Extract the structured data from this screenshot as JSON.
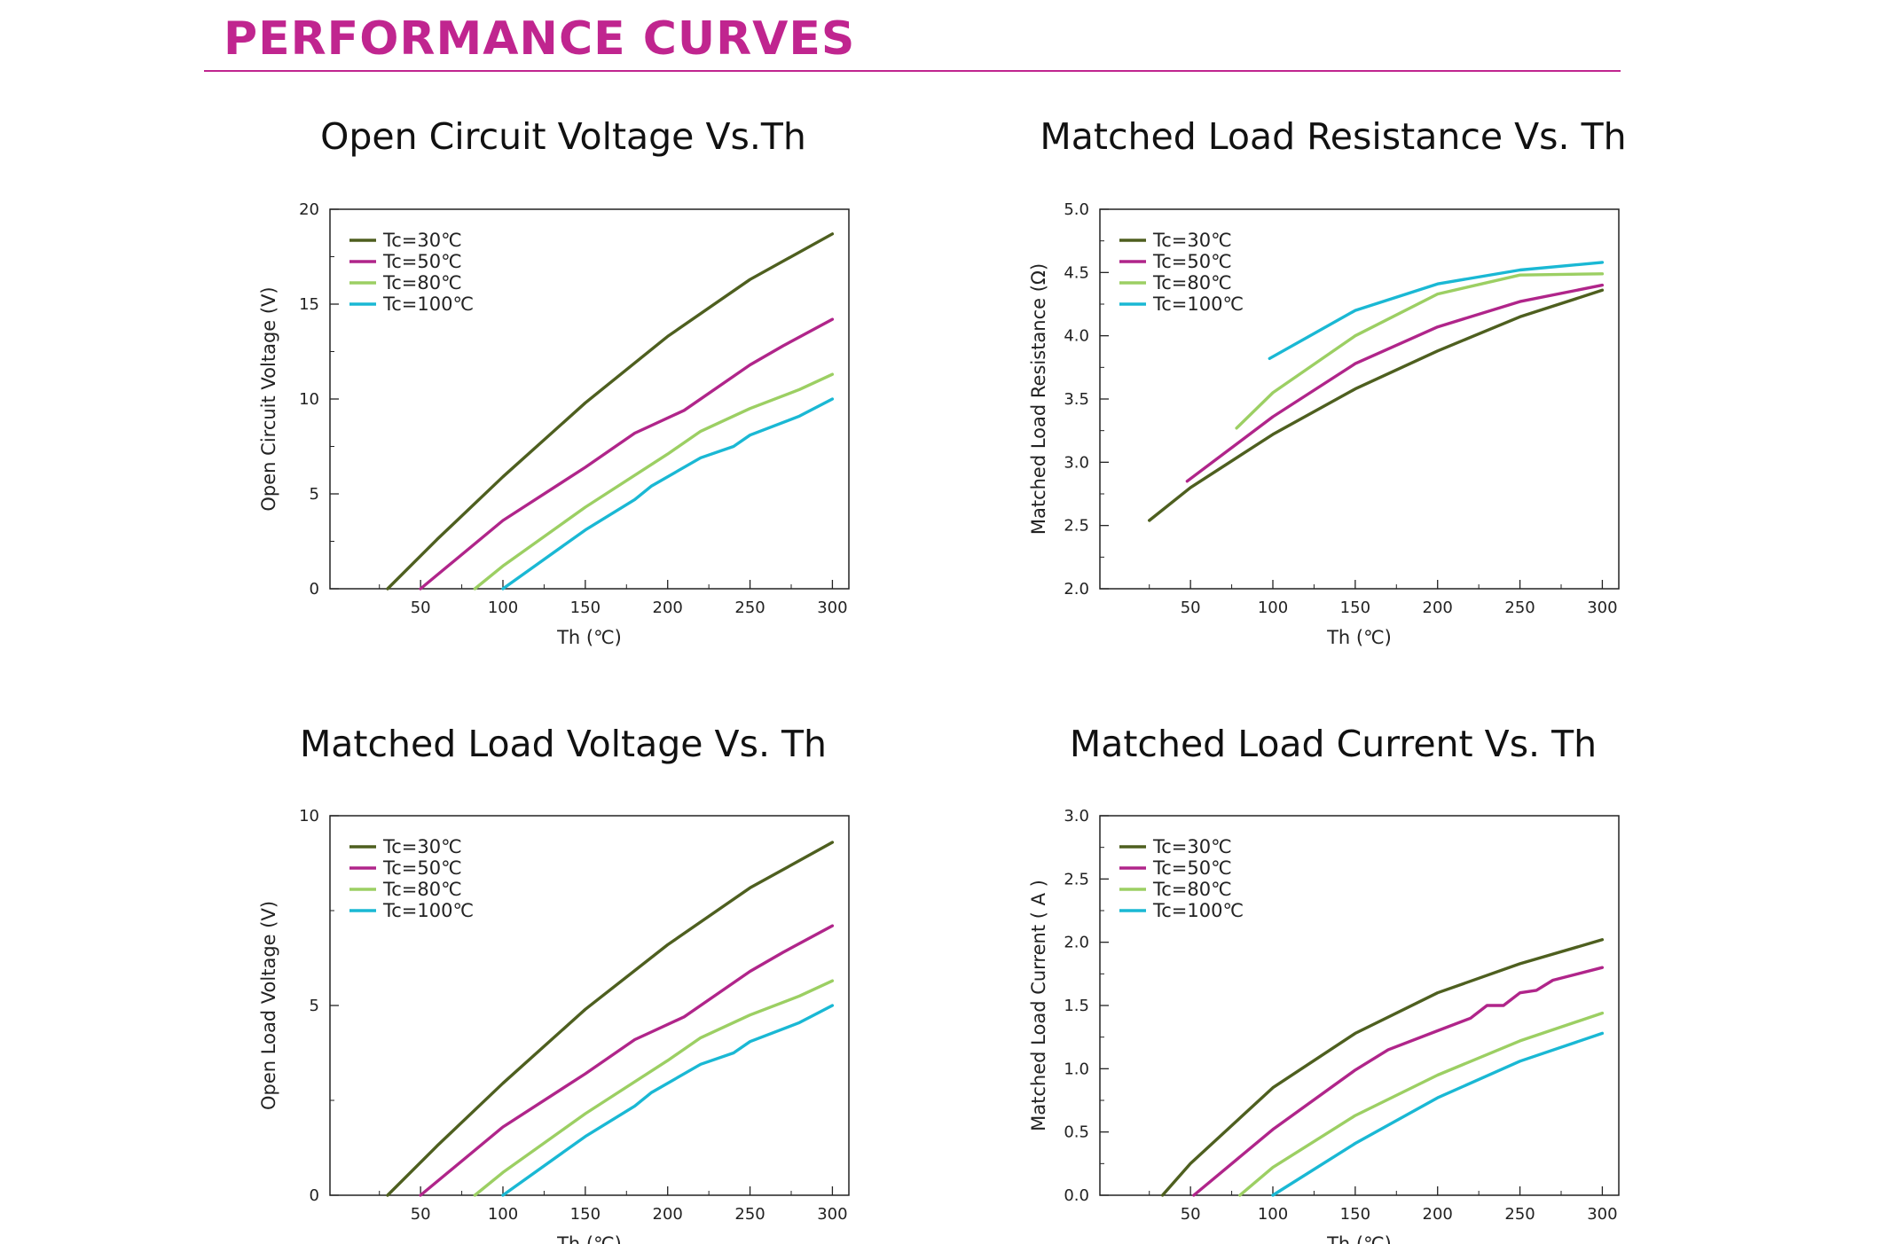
{
  "page": {
    "title": "PERFORMANCE CURVES",
    "accent_color": "#c0258f"
  },
  "chart_data": [
    {
      "type": "line",
      "title": "Open Circuit Voltage Vs.Th",
      "xlabel": "Th (℃)",
      "ylabel": "Open Circuit Voltage (V)",
      "xlim": [
        -5,
        310
      ],
      "ylim": [
        0,
        20
      ],
      "xticks": [
        50,
        100,
        150,
        200,
        250,
        300
      ],
      "yticks": [
        0,
        5,
        10,
        15,
        20
      ],
      "ytick_labels": [
        "0",
        "5",
        "10",
        "15",
        "20"
      ],
      "yminor": [
        2.5,
        7.5,
        12.5,
        17.5
      ],
      "legend_position": "top-left",
      "series": [
        {
          "name": "Tc=30℃",
          "color": "#4e5f1f",
          "points": [
            [
              30,
              0
            ],
            [
              60,
              2.6
            ],
            [
              100,
              5.9
            ],
            [
              150,
              9.8
            ],
            [
              200,
              13.3
            ],
            [
              250,
              16.3
            ],
            [
              300,
              18.7
            ]
          ]
        },
        {
          "name": "Tc=50℃",
          "color": "#b0258a",
          "points": [
            [
              50,
              0
            ],
            [
              100,
              3.6
            ],
            [
              150,
              6.4
            ],
            [
              180,
              8.2
            ],
            [
              190,
              8.6
            ],
            [
              210,
              9.4
            ],
            [
              250,
              11.8
            ],
            [
              270,
              12.8
            ],
            [
              300,
              14.2
            ]
          ]
        },
        {
          "name": "Tc=80℃",
          "color": "#9ccf63",
          "points": [
            [
              83,
              0
            ],
            [
              100,
              1.2
            ],
            [
              150,
              4.3
            ],
            [
              200,
              7.1
            ],
            [
              220,
              8.3
            ],
            [
              250,
              9.5
            ],
            [
              280,
              10.5
            ],
            [
              300,
              11.3
            ]
          ]
        },
        {
          "name": "Tc=100℃",
          "color": "#1ab8d4",
          "points": [
            [
              100,
              0
            ],
            [
              150,
              3.1
            ],
            [
              180,
              4.7
            ],
            [
              190,
              5.4
            ],
            [
              220,
              6.9
            ],
            [
              240,
              7.5
            ],
            [
              250,
              8.1
            ],
            [
              280,
              9.1
            ],
            [
              300,
              10.0
            ]
          ]
        }
      ]
    },
    {
      "type": "line",
      "title": "Matched Load Resistance Vs. Th",
      "xlabel": "Th (℃)",
      "ylabel": "Matched Load Resistance (Ω)",
      "xlim": [
        -5,
        310
      ],
      "ylim": [
        2.0,
        5.0
      ],
      "xticks": [
        50,
        100,
        150,
        200,
        250,
        300
      ],
      "yticks": [
        2.0,
        2.5,
        3.0,
        3.5,
        4.0,
        4.5,
        5.0
      ],
      "ytick_labels": [
        "2.0",
        "2.5",
        "3.0",
        "3.5",
        "4.0",
        "4.5",
        "5.0"
      ],
      "yminor": [
        2.25,
        2.75,
        3.25,
        3.75,
        4.25,
        4.75
      ],
      "legend_position": "top-left",
      "series": [
        {
          "name": "Tc=30℃",
          "color": "#4e5f1f",
          "points": [
            [
              25,
              2.54
            ],
            [
              50,
              2.8
            ],
            [
              100,
              3.22
            ],
            [
              150,
              3.58
            ],
            [
              200,
              3.88
            ],
            [
              250,
              4.15
            ],
            [
              300,
              4.36
            ]
          ]
        },
        {
          "name": "Tc=50℃",
          "color": "#b0258a",
          "points": [
            [
              48,
              2.85
            ],
            [
              100,
              3.36
            ],
            [
              150,
              3.78
            ],
            [
              200,
              4.07
            ],
            [
              250,
              4.27
            ],
            [
              300,
              4.4
            ]
          ]
        },
        {
          "name": "Tc=80℃",
          "color": "#9ccf63",
          "points": [
            [
              78,
              3.27
            ],
            [
              100,
              3.55
            ],
            [
              150,
              4.0
            ],
            [
              200,
              4.33
            ],
            [
              250,
              4.48
            ],
            [
              300,
              4.49
            ]
          ]
        },
        {
          "name": "Tc=100℃",
          "color": "#1ab8d4",
          "points": [
            [
              98,
              3.82
            ],
            [
              150,
              4.2
            ],
            [
              200,
              4.41
            ],
            [
              250,
              4.52
            ],
            [
              300,
              4.58
            ]
          ]
        }
      ]
    },
    {
      "type": "line",
      "title": "Matched Load Voltage Vs. Th",
      "xlabel": "Th (℃)",
      "ylabel": "Open Load Voltage (V)",
      "xlim": [
        -5,
        310
      ],
      "ylim": [
        0,
        10
      ],
      "xticks": [
        50,
        100,
        150,
        200,
        250,
        300
      ],
      "yticks": [
        0,
        5,
        10
      ],
      "ytick_labels": [
        "0",
        "5",
        "10"
      ],
      "yminor": [
        2.5,
        7.5
      ],
      "legend_position": "top-left",
      "series": [
        {
          "name": "Tc=30℃",
          "color": "#4e5f1f",
          "points": [
            [
              30,
              0
            ],
            [
              60,
              1.3
            ],
            [
              100,
              2.95
            ],
            [
              150,
              4.9
            ],
            [
              200,
              6.6
            ],
            [
              250,
              8.1
            ],
            [
              300,
              9.3
            ]
          ]
        },
        {
          "name": "Tc=50℃",
          "color": "#b0258a",
          "points": [
            [
              50,
              0
            ],
            [
              100,
              1.8
            ],
            [
              150,
              3.2
            ],
            [
              180,
              4.1
            ],
            [
              190,
              4.3
            ],
            [
              210,
              4.7
            ],
            [
              250,
              5.9
            ],
            [
              270,
              6.4
            ],
            [
              300,
              7.1
            ]
          ]
        },
        {
          "name": "Tc=80℃",
          "color": "#9ccf63",
          "points": [
            [
              83,
              0
            ],
            [
              100,
              0.6
            ],
            [
              150,
              2.15
            ],
            [
              200,
              3.55
            ],
            [
              220,
              4.15
            ],
            [
              250,
              4.75
            ],
            [
              280,
              5.25
            ],
            [
              300,
              5.65
            ]
          ]
        },
        {
          "name": "Tc=100℃",
          "color": "#1ab8d4",
          "points": [
            [
              100,
              0
            ],
            [
              150,
              1.55
            ],
            [
              180,
              2.35
            ],
            [
              190,
              2.7
            ],
            [
              220,
              3.45
            ],
            [
              240,
              3.75
            ],
            [
              250,
              4.05
            ],
            [
              280,
              4.55
            ],
            [
              300,
              5.0
            ]
          ]
        }
      ]
    },
    {
      "type": "line",
      "title": "Matched Load Current Vs. Th",
      "xlabel": "Th (℃)",
      "ylabel": "Matched Load Current ( A )",
      "xlim": [
        -5,
        310
      ],
      "ylim": [
        0.0,
        3.0
      ],
      "xticks": [
        50,
        100,
        150,
        200,
        250,
        300
      ],
      "yticks": [
        0.0,
        0.5,
        1.0,
        1.5,
        2.0,
        2.5,
        3.0
      ],
      "ytick_labels": [
        "0.0",
        "0.5",
        "1.0",
        "1.5",
        "2.0",
        "2.5",
        "3.0"
      ],
      "yminor": [
        0.25,
        0.75,
        1.25,
        1.75,
        2.25,
        2.75
      ],
      "legend_position": "top-left",
      "series": [
        {
          "name": "Tc=30℃",
          "color": "#4e5f1f",
          "points": [
            [
              33,
              0
            ],
            [
              50,
              0.25
            ],
            [
              100,
              0.85
            ],
            [
              150,
              1.28
            ],
            [
              200,
              1.6
            ],
            [
              250,
              1.83
            ],
            [
              300,
              2.02
            ]
          ]
        },
        {
          "name": "Tc=50℃",
          "color": "#b0258a",
          "points": [
            [
              52,
              0
            ],
            [
              100,
              0.52
            ],
            [
              150,
              0.99
            ],
            [
              170,
              1.15
            ],
            [
              200,
              1.3
            ],
            [
              220,
              1.4
            ],
            [
              230,
              1.5
            ],
            [
              240,
              1.5
            ],
            [
              250,
              1.6
            ],
            [
              260,
              1.62
            ],
            [
              270,
              1.7
            ],
            [
              300,
              1.8
            ]
          ]
        },
        {
          "name": "Tc=80℃",
          "color": "#9ccf63",
          "points": [
            [
              80,
              0
            ],
            [
              100,
              0.22
            ],
            [
              150,
              0.63
            ],
            [
              200,
              0.95
            ],
            [
              250,
              1.22
            ],
            [
              300,
              1.44
            ]
          ]
        },
        {
          "name": "Tc=100℃",
          "color": "#1ab8d4",
          "points": [
            [
              100,
              0
            ],
            [
              150,
              0.41
            ],
            [
              200,
              0.77
            ],
            [
              250,
              1.06
            ],
            [
              300,
              1.28
            ]
          ]
        }
      ]
    }
  ]
}
